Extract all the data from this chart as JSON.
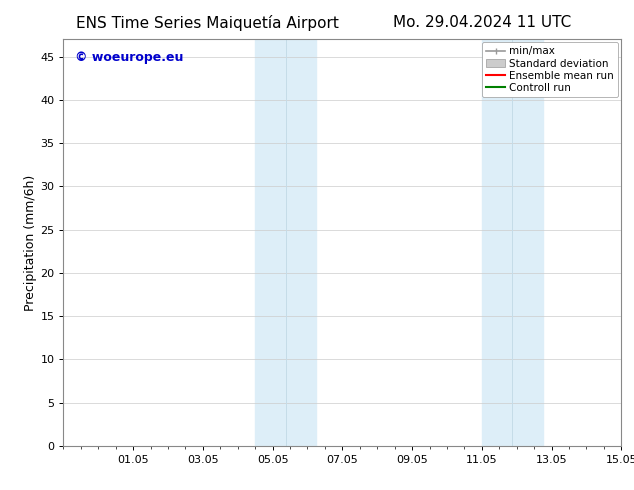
{
  "title_left": "ENS Time Series Maiquetía Airport",
  "title_right": "Mo. 29.04.2024 11 UTC",
  "ylabel": "Precipitation (mm/6h)",
  "ylim": [
    0,
    47
  ],
  "yticks": [
    0,
    5,
    10,
    15,
    20,
    25,
    30,
    35,
    40,
    45
  ],
  "xtick_positions": [
    2,
    4,
    6,
    8,
    10,
    12,
    14,
    16
  ],
  "xtick_labels": [
    "01.05",
    "03.05",
    "05.05",
    "07.05",
    "09.05",
    "11.05",
    "13.05",
    "15.05"
  ],
  "xlim": [
    0,
    16
  ],
  "shaded_bands": [
    {
      "x_start": 5.5,
      "x_end": 7.25
    },
    {
      "x_start": 12.0,
      "x_end": 13.75
    }
  ],
  "band_color": "#ddeef8",
  "band_line_color": "#c5dce8",
  "background_color": "#ffffff",
  "plot_bg_color": "#ffffff",
  "legend_labels": [
    "min/max",
    "Standard deviation",
    "Ensemble mean run",
    "Controll run"
  ],
  "legend_colors_line": [
    "#999999",
    "#bbbbbb",
    "#ff0000",
    "#008000"
  ],
  "watermark_text": "© woeurope.eu",
  "watermark_color": "#0000cc",
  "title_fontsize": 11,
  "ylabel_fontsize": 9,
  "tick_fontsize": 8,
  "legend_fontsize": 7.5,
  "watermark_fontsize": 9
}
